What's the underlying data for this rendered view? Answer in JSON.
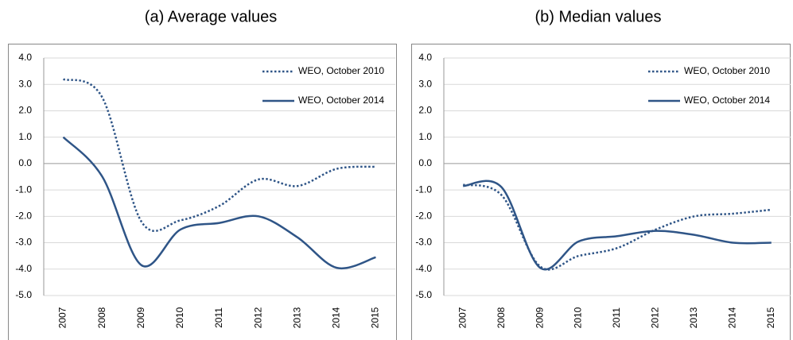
{
  "chart_data": [
    {
      "type": "line",
      "title": "(a) Average values",
      "categories": [
        "2007",
        "2008",
        "2009",
        "2010",
        "2011",
        "2012",
        "2013",
        "2014",
        "2015"
      ],
      "ylim": [
        -5,
        4
      ],
      "yticks": [
        {
          "value": -5,
          "label": "-5.0"
        },
        {
          "value": -4,
          "label": "-4.0"
        },
        {
          "value": -3,
          "label": "-3.0"
        },
        {
          "value": -2,
          "label": "-2.0"
        },
        {
          "value": -1,
          "label": "-1.0"
        },
        {
          "value": 0,
          "label": "0.0"
        },
        {
          "value": 1,
          "label": "1.0"
        },
        {
          "value": 2,
          "label": "2.0"
        },
        {
          "value": 3,
          "label": "3.0"
        },
        {
          "value": 4,
          "label": "4.0"
        }
      ],
      "grid": true,
      "legend": "upper right",
      "series": [
        {
          "name": "WEO, October 2010",
          "color": "#2f5587",
          "line_style": "dotted",
          "values": [
            3.2,
            2.5,
            -2.2,
            -2.15,
            -1.6,
            -0.6,
            -0.85,
            -0.2,
            -0.12
          ]
        },
        {
          "name": "WEO, October 2014",
          "color": "#2f5587",
          "line_style": "solid",
          "values": [
            1.0,
            -0.5,
            -3.85,
            -2.5,
            -2.25,
            -2.0,
            -2.8,
            -3.95,
            -3.55
          ]
        }
      ]
    },
    {
      "type": "line",
      "title": "(b) Median values",
      "categories": [
        "2007",
        "2008",
        "2009",
        "2010",
        "2011",
        "2012",
        "2013",
        "2014",
        "2015"
      ],
      "ylim": [
        -5,
        4
      ],
      "yticks": [
        {
          "value": -5,
          "label": "-5.0"
        },
        {
          "value": -4,
          "label": "-4.0"
        },
        {
          "value": -3,
          "label": "-3.0"
        },
        {
          "value": -2,
          "label": "-2.0"
        },
        {
          "value": -1,
          "label": "-1.0"
        },
        {
          "value": 0,
          "label": "0.0"
        },
        {
          "value": 1,
          "label": "1.0"
        },
        {
          "value": 2,
          "label": "2.0"
        },
        {
          "value": 3,
          "label": "3.0"
        },
        {
          "value": 4,
          "label": "4.0"
        }
      ],
      "grid": true,
      "legend": "upper right",
      "series": [
        {
          "name": "WEO, October 2010",
          "color": "#2f5587",
          "line_style": "dotted",
          "values": [
            -0.8,
            -1.2,
            -3.9,
            -3.5,
            -3.2,
            -2.5,
            -2.0,
            -1.9,
            -1.75
          ]
        },
        {
          "name": "WEO, October 2014",
          "color": "#2f5587",
          "line_style": "solid",
          "values": [
            -0.85,
            -0.9,
            -3.95,
            -2.95,
            -2.75,
            -2.55,
            -2.7,
            -3.0,
            -3.0
          ]
        }
      ]
    }
  ]
}
